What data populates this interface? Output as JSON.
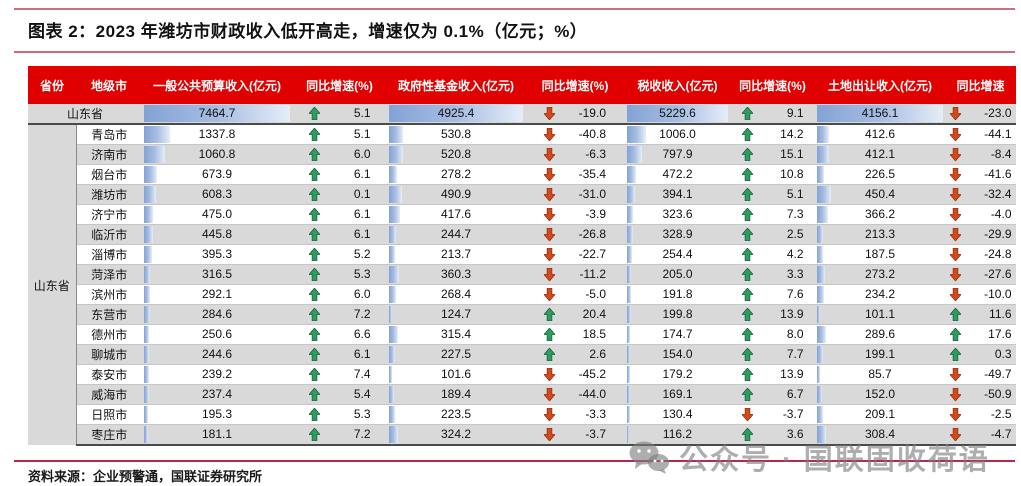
{
  "page": {
    "title": "图表 2：2023 年潍坊市财政收入低开高走，增速仅为 0.1%（亿元；%）",
    "source": "资料来源：企业预警通，国联证券研究所",
    "watermark": {
      "icon": "wechat-icon",
      "text": "公众号 · 国联固收荷语"
    }
  },
  "colors": {
    "header_bg": "#e00000",
    "row_stripe": "#d9d9d9",
    "data_bar_blue": "#83a2d4",
    "up_arrow_green": "#2e9e60",
    "down_arrow_red": "#d24a1a",
    "title_rule_pink": "#d06a80",
    "footer_rule_crimson": "#b5294e"
  },
  "chart_data": {
    "type": "table",
    "title": "2023 年潍坊市财政收入低开高走，增速仅为 0.1%（亿元；%）",
    "province": "山东省",
    "columns": [
      "省份",
      "地级市",
      "一般公共预算收入(亿元)",
      "同比增速(%)",
      "政府性基金收入(亿元)",
      "同比增速(%)",
      "税收收入(亿元)",
      "同比增速(%)",
      "土地出让收入(亿元)",
      "同比增速"
    ],
    "rows": [
      {
        "city": "山东省",
        "budget": "7464.7",
        "budget_yoy": "5.1",
        "fund": "4925.4",
        "fund_yoy": "-19.0",
        "tax": "5229.6",
        "tax_yoy": "9.1",
        "land": "4156.1",
        "land_yoy": "-23.0"
      },
      {
        "city": "青岛市",
        "budget": "1337.8",
        "budget_yoy": "5.1",
        "fund": "530.8",
        "fund_yoy": "-40.8",
        "tax": "1006.0",
        "tax_yoy": "14.2",
        "land": "412.6",
        "land_yoy": "-44.1"
      },
      {
        "city": "济南市",
        "budget": "1060.8",
        "budget_yoy": "6.0",
        "fund": "520.8",
        "fund_yoy": "-6.3",
        "tax": "797.9",
        "tax_yoy": "15.1",
        "land": "412.1",
        "land_yoy": "-8.4"
      },
      {
        "city": "烟台市",
        "budget": "673.9",
        "budget_yoy": "6.1",
        "fund": "278.2",
        "fund_yoy": "-35.4",
        "tax": "472.2",
        "tax_yoy": "10.8",
        "land": "226.5",
        "land_yoy": "-41.6"
      },
      {
        "city": "潍坊市",
        "budget": "608.3",
        "budget_yoy": "0.1",
        "fund": "490.9",
        "fund_yoy": "-31.0",
        "tax": "394.1",
        "tax_yoy": "5.1",
        "land": "450.4",
        "land_yoy": "-32.4"
      },
      {
        "city": "济宁市",
        "budget": "475.0",
        "budget_yoy": "6.1",
        "fund": "417.6",
        "fund_yoy": "-3.9",
        "tax": "323.6",
        "tax_yoy": "7.3",
        "land": "366.2",
        "land_yoy": "-4.0"
      },
      {
        "city": "临沂市",
        "budget": "445.8",
        "budget_yoy": "6.1",
        "fund": "244.7",
        "fund_yoy": "-26.8",
        "tax": "328.9",
        "tax_yoy": "2.5",
        "land": "213.3",
        "land_yoy": "-29.9"
      },
      {
        "city": "淄博市",
        "budget": "395.3",
        "budget_yoy": "5.2",
        "fund": "213.7",
        "fund_yoy": "-22.7",
        "tax": "254.4",
        "tax_yoy": "4.2",
        "land": "187.5",
        "land_yoy": "-24.8"
      },
      {
        "city": "菏泽市",
        "budget": "316.5",
        "budget_yoy": "5.3",
        "fund": "360.3",
        "fund_yoy": "-11.2",
        "tax": "205.0",
        "tax_yoy": "3.3",
        "land": "273.2",
        "land_yoy": "-27.6"
      },
      {
        "city": "滨州市",
        "budget": "292.1",
        "budget_yoy": "6.0",
        "fund": "268.4",
        "fund_yoy": "-5.0",
        "tax": "191.8",
        "tax_yoy": "7.6",
        "land": "234.2",
        "land_yoy": "-10.0"
      },
      {
        "city": "东营市",
        "budget": "284.6",
        "budget_yoy": "7.2",
        "fund": "124.7",
        "fund_yoy": "20.4",
        "tax": "199.8",
        "tax_yoy": "13.9",
        "land": "101.1",
        "land_yoy": "11.6"
      },
      {
        "city": "德州市",
        "budget": "250.6",
        "budget_yoy": "6.6",
        "fund": "315.4",
        "fund_yoy": "18.5",
        "tax": "174.7",
        "tax_yoy": "8.0",
        "land": "289.6",
        "land_yoy": "17.6"
      },
      {
        "city": "聊城市",
        "budget": "244.6",
        "budget_yoy": "6.1",
        "fund": "227.5",
        "fund_yoy": "2.6",
        "tax": "154.0",
        "tax_yoy": "7.7",
        "land": "199.1",
        "land_yoy": "0.3"
      },
      {
        "city": "泰安市",
        "budget": "239.2",
        "budget_yoy": "7.4",
        "fund": "101.6",
        "fund_yoy": "-45.2",
        "tax": "179.2",
        "tax_yoy": "13.9",
        "land": "85.7",
        "land_yoy": "-49.7"
      },
      {
        "city": "威海市",
        "budget": "237.4",
        "budget_yoy": "5.4",
        "fund": "189.4",
        "fund_yoy": "-44.0",
        "tax": "169.1",
        "tax_yoy": "6.7",
        "land": "152.0",
        "land_yoy": "-50.9"
      },
      {
        "city": "日照市",
        "budget": "195.3",
        "budget_yoy": "5.3",
        "fund": "223.5",
        "fund_yoy": "-3.3",
        "tax": "130.4",
        "tax_yoy": "-3.7",
        "land": "209.1",
        "land_yoy": "-2.5"
      },
      {
        "city": "枣庄市",
        "budget": "181.1",
        "budget_yoy": "7.2",
        "fund": "324.2",
        "fund_yoy": "-3.7",
        "tax": "116.2",
        "tax_yoy": "3.6",
        "land": "308.4",
        "land_yoy": "-4.7"
      }
    ]
  }
}
